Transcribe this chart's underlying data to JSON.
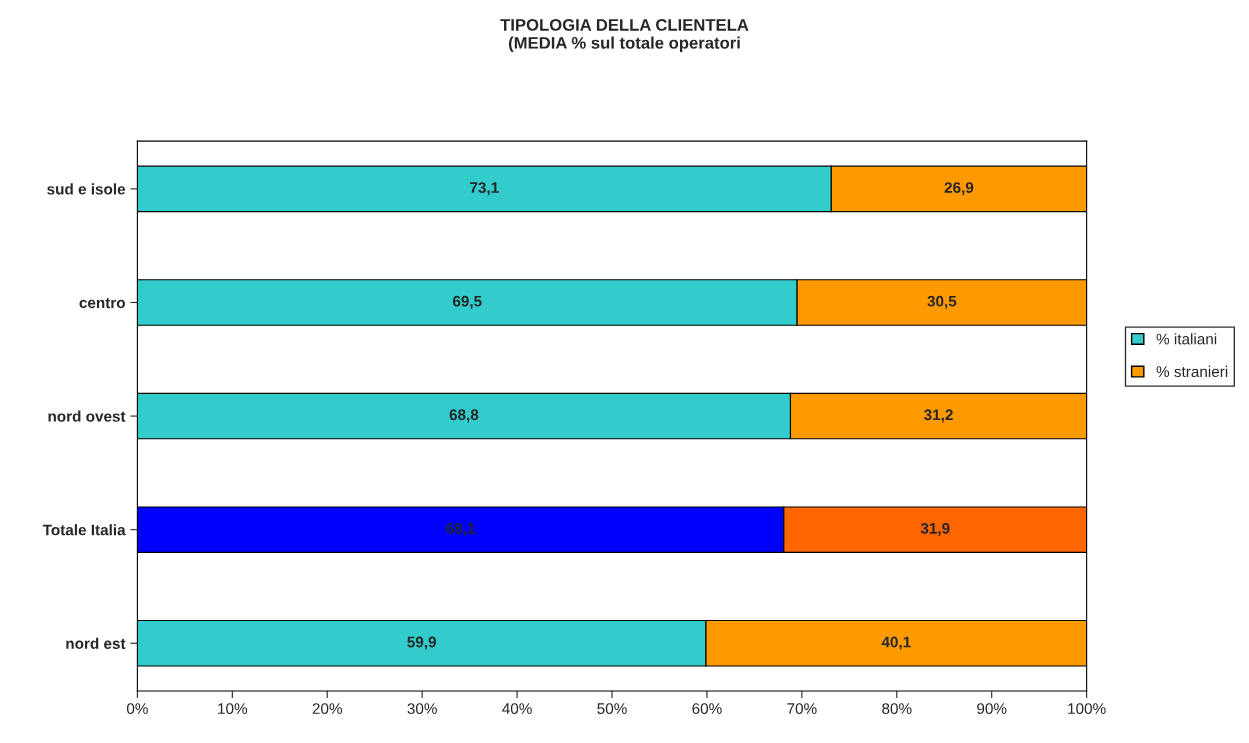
{
  "chart_data": {
    "type": "bar",
    "orientation": "horizontal",
    "stacked": true,
    "title": "TIPOLOGIA DELLA CLIENTELA\n(MEDIA % sul totale operatori",
    "categories": [
      "sud e isole",
      "centro",
      "nord ovest",
      "Totale Italia",
      "nord est"
    ],
    "series": [
      {
        "name": "% italiani",
        "color": "#33cccc",
        "colors": [
          "#33cccc",
          "#33cccc",
          "#33cccc",
          "#0000ff",
          "#33cccc"
        ],
        "values": [
          73.1,
          69.5,
          68.8,
          68.1,
          59.9
        ],
        "value_labels": [
          "73,1",
          "69,5",
          "68,8",
          "68,1",
          "59,9"
        ]
      },
      {
        "name": "% stranieri",
        "color": "#ff9900",
        "colors": [
          "#ff9900",
          "#ff9900",
          "#ff9900",
          "#ff6600",
          "#ff9900"
        ],
        "values": [
          26.9,
          30.5,
          31.2,
          31.9,
          40.1
        ],
        "value_labels": [
          "26,9",
          "30,5",
          "31,2",
          "31,9",
          "40,1"
        ]
      }
    ],
    "xlim": [
      0,
      100
    ],
    "xticks": [
      {
        "value": 0,
        "label": "0%"
      },
      {
        "value": 10,
        "label": "10%"
      },
      {
        "value": 20,
        "label": "20%"
      },
      {
        "value": 30,
        "label": "30%"
      },
      {
        "value": 40,
        "label": "40%"
      },
      {
        "value": 50,
        "label": "50%"
      },
      {
        "value": 60,
        "label": "60%"
      },
      {
        "value": 70,
        "label": "70%"
      },
      {
        "value": 80,
        "label": "80%"
      },
      {
        "value": 90,
        "label": "90%"
      },
      {
        "value": 100,
        "label": "100%"
      }
    ],
    "grid": false,
    "legend": "right"
  }
}
